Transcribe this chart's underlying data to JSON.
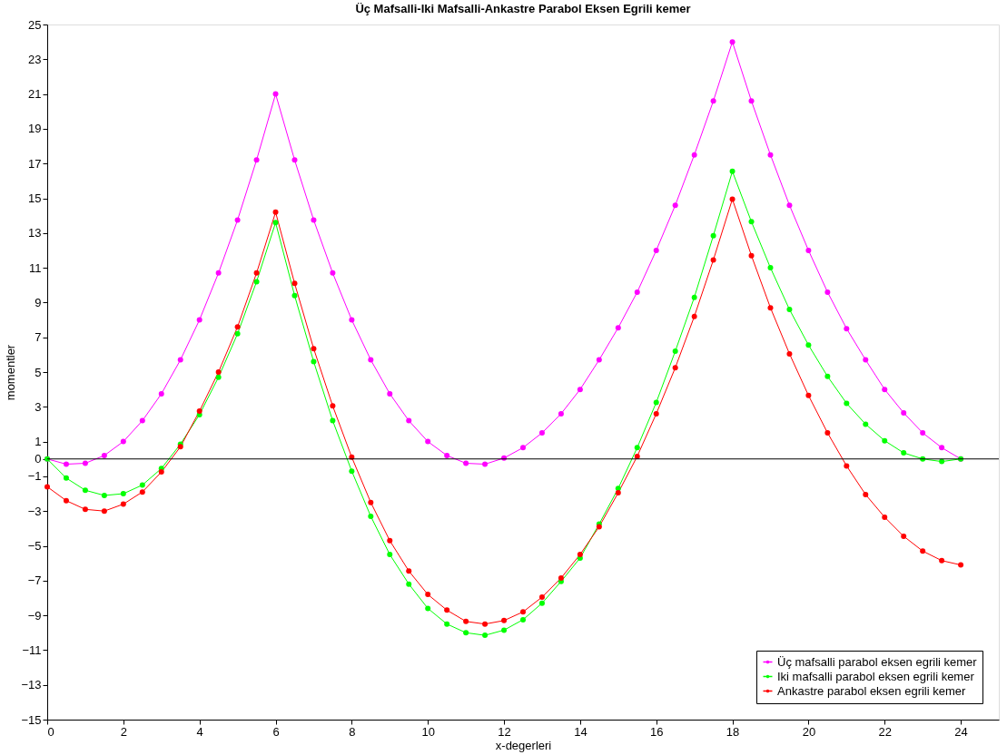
{
  "chart_data": {
    "type": "line",
    "title": "Üç Mafsalli-Iki Mafsalli-Ankastre Parabol Eksen Egrili kemer",
    "xlabel": "x-degerleri",
    "ylabel": "momentler",
    "x": [
      0,
      0.5,
      1,
      1.5,
      2,
      2.5,
      3,
      3.5,
      4,
      4.5,
      5,
      5.5,
      6,
      6.5,
      7,
      7.5,
      8,
      8.5,
      9,
      9.5,
      10,
      10.5,
      11,
      11.5,
      12,
      12.5,
      13,
      13.5,
      14,
      14.5,
      15,
      15.5,
      16,
      16.5,
      17,
      17.5,
      18,
      18.5,
      19,
      19.5,
      20,
      20.5,
      21,
      21.5,
      22,
      22.5,
      23,
      23.5,
      24
    ],
    "series": [
      {
        "name": "Üç mafsalli parabol eksen egrili kemer",
        "color": "#ff00ff",
        "values": [
          0,
          -0.3,
          -0.25,
          0.2,
          1.0,
          2.2,
          3.75,
          5.7,
          8.0,
          10.7,
          13.75,
          17.2,
          21.0,
          17.2,
          13.75,
          10.7,
          8.0,
          5.7,
          3.75,
          2.2,
          1.0,
          0.2,
          -0.25,
          -0.3,
          0.05,
          0.65,
          1.5,
          2.6,
          4.0,
          5.7,
          7.55,
          9.6,
          12.0,
          14.6,
          17.5,
          20.6,
          24.0,
          20.6,
          17.5,
          14.6,
          12.0,
          9.6,
          7.5,
          5.7,
          4.0,
          2.65,
          1.5,
          0.65,
          0
        ]
      },
      {
        "name": "Iki mafsalli parabol eksen egrili kemer",
        "color": "#00ff00",
        "values": [
          0,
          -1.1,
          -1.8,
          -2.1,
          -2.0,
          -1.5,
          -0.55,
          0.85,
          2.55,
          4.7,
          7.2,
          10.2,
          13.6,
          9.4,
          5.6,
          2.2,
          -0.7,
          -3.3,
          -5.5,
          -7.2,
          -8.6,
          -9.5,
          -10.0,
          -10.15,
          -9.85,
          -9.25,
          -8.3,
          -7.05,
          -5.7,
          -3.75,
          -1.7,
          0.65,
          3.25,
          6.2,
          9.3,
          12.85,
          16.55,
          13.65,
          11.0,
          8.6,
          6.55,
          4.75,
          3.2,
          2.0,
          1.05,
          0.35,
          0.0,
          -0.15,
          0
        ]
      },
      {
        "name": "Ankastre parabol eksen egrili kemer",
        "color": "#ff0000",
        "values": [
          -1.6,
          -2.4,
          -2.9,
          -3.0,
          -2.6,
          -1.9,
          -0.75,
          0.7,
          2.75,
          5.0,
          7.6,
          10.7,
          14.2,
          10.1,
          6.35,
          3.05,
          0.1,
          -2.5,
          -4.7,
          -6.45,
          -7.8,
          -8.7,
          -9.35,
          -9.5,
          -9.3,
          -8.8,
          -7.95,
          -6.85,
          -5.5,
          -3.9,
          -1.95,
          0.15,
          2.6,
          5.25,
          8.2,
          11.45,
          14.95,
          11.7,
          8.7,
          6.05,
          3.65,
          1.5,
          -0.4,
          -2.05,
          -3.35,
          -4.45,
          -5.3,
          -5.85,
          -6.1
        ]
      }
    ],
    "xlim": [
      0,
      25
    ],
    "xticks": [
      0,
      2,
      4,
      6,
      8,
      10,
      12,
      14,
      16,
      18,
      20,
      22,
      24
    ],
    "ylim": [
      -15,
      25
    ],
    "yticks": [
      -15,
      -13,
      -11,
      -9,
      -7,
      -5,
      -3,
      -1,
      0,
      1,
      3,
      5,
      7,
      9,
      11,
      13,
      15,
      17,
      19,
      21,
      23,
      25
    ],
    "ref_lines": [
      {
        "axis": "y",
        "value": 0,
        "color": "#000000"
      }
    ],
    "grid": false,
    "legend": "bottom right",
    "marker": "circle",
    "line_style": "solid"
  }
}
